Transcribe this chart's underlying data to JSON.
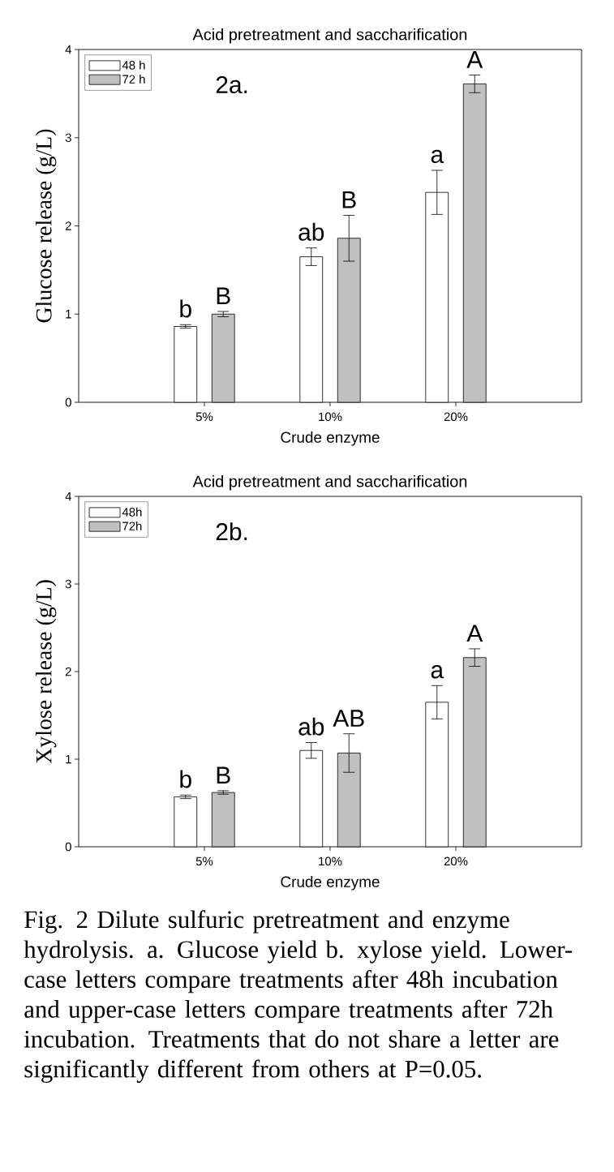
{
  "chart_data": [
    {
      "type": "bar",
      "title": "Acid pretreatment and saccharification",
      "xlabel": "Crude enzyme",
      "ylabel": "Glucose release (g/L)",
      "categories": [
        "5%",
        "10%",
        "20%"
      ],
      "series": [
        {
          "name": "48 h",
          "color": "#ffffff",
          "values": [
            0.86,
            1.65,
            2.38
          ],
          "errors": [
            0.02,
            0.1,
            0.25
          ]
        },
        {
          "name": "72 h",
          "color": "#c0c0c0",
          "values": [
            1.0,
            1.86,
            3.61
          ],
          "errors": [
            0.03,
            0.26,
            0.1
          ]
        }
      ],
      "ylim": [
        0,
        4
      ],
      "yticks": [
        0,
        1,
        2,
        3,
        4
      ],
      "legend": "top left",
      "annotations": [
        "2a.",
        "b",
        "B",
        "ab",
        "B",
        "a",
        "A"
      ]
    },
    {
      "type": "bar",
      "title": "Acid pretreatment and saccharification",
      "xlabel": "Crude enzyme",
      "ylabel": "Xylose release (g/L)",
      "categories": [
        "5%",
        "10%",
        "20%"
      ],
      "series": [
        {
          "name": "48h",
          "color": "#ffffff",
          "values": [
            0.57,
            1.1,
            1.65
          ],
          "errors": [
            0.02,
            0.09,
            0.19
          ]
        },
        {
          "name": "72h",
          "color": "#c0c0c0",
          "values": [
            0.62,
            1.07,
            2.16
          ],
          "errors": [
            0.02,
            0.22,
            0.1
          ]
        }
      ],
      "ylim": [
        0,
        4
      ],
      "yticks": [
        0,
        1,
        2,
        3,
        4
      ],
      "legend": "top left",
      "annotations": [
        "2b.",
        "b",
        "B",
        "ab",
        "AB",
        "a",
        "A",
        "Fig. 2 Dilute sulfuric pretreatment and enzyme hydrolysis. a. Glucose yield b. xylose yield. Lower-case letters compare treatments after 48h incubation and upper-case letters compare treatments after 72h incubation.  Treatments that do not share a letter are significantly different from others at P=0.05."
      ]
    }
  ]
}
